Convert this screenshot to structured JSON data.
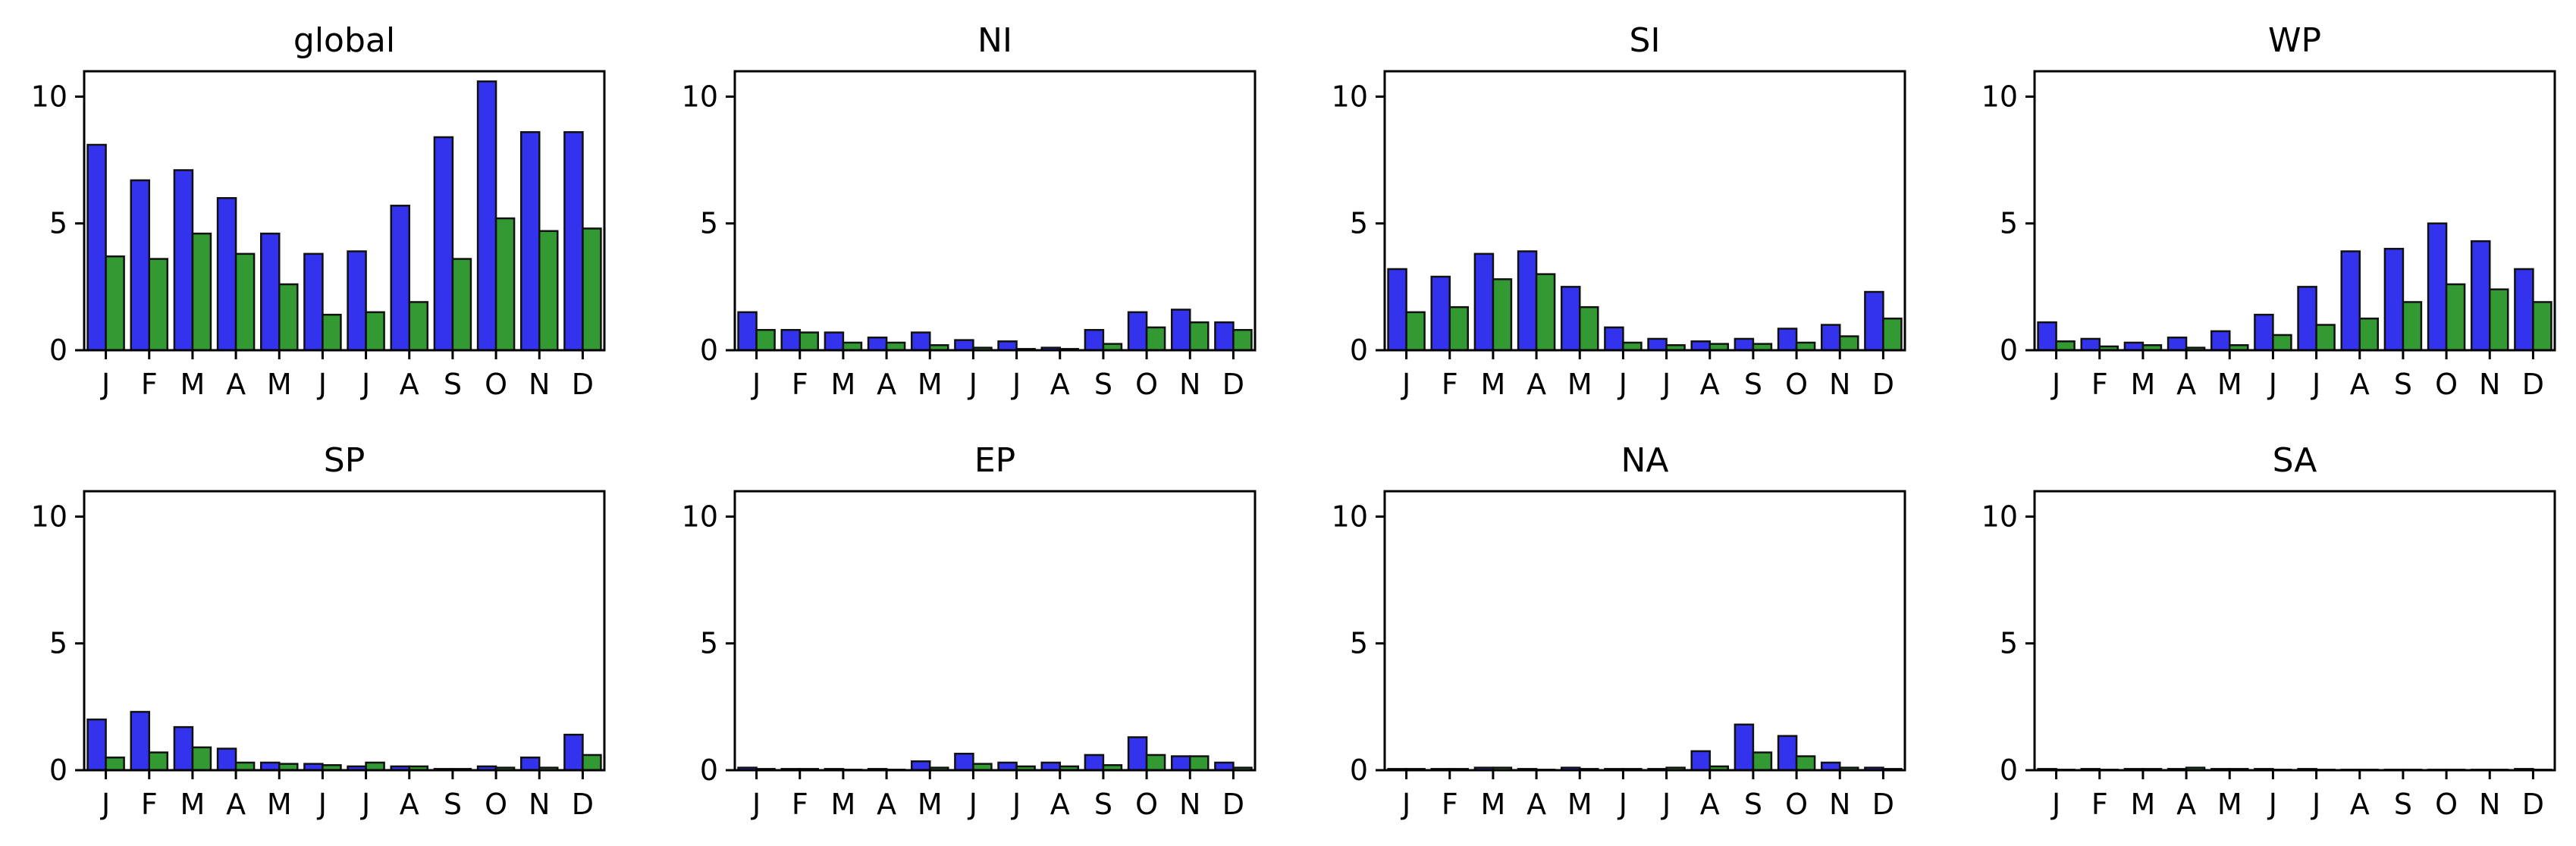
{
  "colors": {
    "series_a": "#3333ee",
    "series_b": "#339933",
    "edge": "#111111"
  },
  "chart_data": [
    {
      "type": "bar",
      "title": "global",
      "categories": [
        "J",
        "F",
        "M",
        "A",
        "M",
        "J",
        "J",
        "A",
        "S",
        "O",
        "N",
        "D"
      ],
      "ylim": [
        0,
        11
      ],
      "yticks": [
        0,
        5,
        10
      ],
      "series": [
        {
          "values": [
            8.1,
            6.7,
            7.1,
            6.0,
            4.6,
            3.8,
            3.9,
            5.7,
            8.4,
            10.6,
            8.6,
            8.6
          ]
        },
        {
          "values": [
            3.7,
            3.6,
            4.6,
            3.8,
            2.6,
            1.4,
            1.5,
            1.9,
            3.6,
            5.2,
            4.7,
            4.8
          ]
        }
      ]
    },
    {
      "type": "bar",
      "title": "NI",
      "categories": [
        "J",
        "F",
        "M",
        "A",
        "M",
        "J",
        "J",
        "A",
        "S",
        "O",
        "N",
        "D"
      ],
      "ylim": [
        0,
        11
      ],
      "yticks": [
        0,
        5,
        10
      ],
      "series": [
        {
          "values": [
            1.5,
            0.8,
            0.7,
            0.5,
            0.7,
            0.4,
            0.35,
            0.1,
            0.8,
            1.5,
            1.6,
            1.1
          ]
        },
        {
          "values": [
            0.8,
            0.7,
            0.3,
            0.3,
            0.2,
            0.1,
            0.05,
            0.05,
            0.25,
            0.9,
            1.1,
            0.8
          ]
        }
      ]
    },
    {
      "type": "bar",
      "title": "SI",
      "categories": [
        "J",
        "F",
        "M",
        "A",
        "M",
        "J",
        "J",
        "A",
        "S",
        "O",
        "N",
        "D"
      ],
      "ylim": [
        0,
        11
      ],
      "yticks": [
        0,
        5,
        10
      ],
      "series": [
        {
          "values": [
            3.2,
            2.9,
            3.8,
            3.9,
            2.5,
            0.9,
            0.45,
            0.35,
            0.45,
            0.85,
            1.0,
            2.3
          ]
        },
        {
          "values": [
            1.5,
            1.7,
            2.8,
            3.0,
            1.7,
            0.3,
            0.2,
            0.25,
            0.25,
            0.3,
            0.55,
            1.25
          ]
        }
      ]
    },
    {
      "type": "bar",
      "title": "WP",
      "categories": [
        "J",
        "F",
        "M",
        "A",
        "M",
        "J",
        "J",
        "A",
        "S",
        "O",
        "N",
        "D"
      ],
      "ylim": [
        0,
        11
      ],
      "yticks": [
        0,
        5,
        10
      ],
      "series": [
        {
          "values": [
            1.1,
            0.45,
            0.3,
            0.5,
            0.75,
            1.4,
            2.5,
            3.9,
            4.0,
            5.0,
            4.3,
            3.2
          ]
        },
        {
          "values": [
            0.35,
            0.15,
            0.2,
            0.1,
            0.2,
            0.6,
            1.0,
            1.25,
            1.9,
            2.6,
            2.4,
            1.9
          ]
        }
      ]
    },
    {
      "type": "bar",
      "title": "SP",
      "categories": [
        "J",
        "F",
        "M",
        "A",
        "M",
        "J",
        "J",
        "A",
        "S",
        "O",
        "N",
        "D"
      ],
      "ylim": [
        0,
        11
      ],
      "yticks": [
        0,
        5,
        10
      ],
      "series": [
        {
          "values": [
            2.0,
            2.3,
            1.7,
            0.85,
            0.3,
            0.25,
            0.15,
            0.15,
            0.05,
            0.15,
            0.5,
            1.4
          ]
        },
        {
          "values": [
            0.5,
            0.7,
            0.9,
            0.3,
            0.25,
            0.2,
            0.3,
            0.15,
            0.05,
            0.1,
            0.1,
            0.6
          ]
        }
      ]
    },
    {
      "type": "bar",
      "title": "EP",
      "categories": [
        "J",
        "F",
        "M",
        "A",
        "M",
        "J",
        "J",
        "A",
        "S",
        "O",
        "N",
        "D"
      ],
      "ylim": [
        0,
        11
      ],
      "yticks": [
        0,
        5,
        10
      ],
      "series": [
        {
          "values": [
            0.1,
            0.05,
            0.05,
            0.05,
            0.35,
            0.65,
            0.3,
            0.3,
            0.6,
            1.3,
            0.55,
            0.3
          ]
        },
        {
          "values": [
            0.05,
            0.05,
            0.02,
            0.02,
            0.1,
            0.25,
            0.15,
            0.15,
            0.2,
            0.6,
            0.55,
            0.1
          ]
        }
      ]
    },
    {
      "type": "bar",
      "title": "NA",
      "categories": [
        "J",
        "F",
        "M",
        "A",
        "M",
        "J",
        "J",
        "A",
        "S",
        "O",
        "N",
        "D"
      ],
      "ylim": [
        0,
        11
      ],
      "yticks": [
        0,
        5,
        10
      ],
      "series": [
        {
          "values": [
            0.05,
            0.05,
            0.1,
            0.05,
            0.1,
            0.05,
            0.05,
            0.75,
            1.8,
            1.35,
            0.3,
            0.1
          ]
        },
        {
          "values": [
            0.05,
            0.05,
            0.1,
            0.02,
            0.05,
            0.05,
            0.1,
            0.15,
            0.7,
            0.55,
            0.1,
            0.05
          ]
        }
      ]
    },
    {
      "type": "bar",
      "title": "SA",
      "categories": [
        "J",
        "F",
        "M",
        "A",
        "M",
        "J",
        "J",
        "A",
        "S",
        "O",
        "N",
        "D"
      ],
      "ylim": [
        0,
        11
      ],
      "yticks": [
        0,
        5,
        10
      ],
      "series": [
        {
          "values": [
            0.05,
            0.05,
            0.05,
            0.05,
            0.05,
            0.05,
            0.05,
            0.02,
            0.02,
            0.02,
            0.02,
            0.05
          ]
        },
        {
          "values": [
            0.02,
            0.02,
            0.05,
            0.1,
            0.05,
            0.02,
            0.02,
            0.02,
            0.02,
            0.02,
            0.02,
            0.02
          ]
        }
      ]
    }
  ]
}
